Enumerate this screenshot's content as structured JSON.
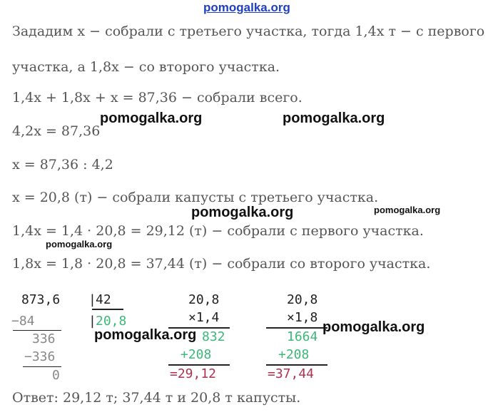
{
  "watermark": "pomogalka.org",
  "lines": [
    "Зададим x − собрали с третьего участка, тогда 1,4x т − с первого",
    "участка, а 1,8x − со второго участка.",
    "1,4x + 1,8x + x = 87,36 − собрали всего.",
    "4,2x = 87,36",
    "x = 87,36 : 4,2",
    "x = 20,8 (т) − собрали капусты с третьего участка.",
    "1,4x = 1,4 · 20,8 = 29,12 (т) − собрали с первого участка.",
    "1,8x = 1,8 · 20,8 = 37,44 (т) − собрали со второго участка."
  ],
  "division": {
    "dividend": "873,6",
    "divisor": "42",
    "quotient": "20,8",
    "sub1": "−84",
    "rem1": "336",
    "sub2": "−336",
    "rem2": "0"
  },
  "mult1": {
    "a": "20,8",
    "b": "×1,4",
    "p1": "832",
    "p2": "+208",
    "result": "=29,12"
  },
  "mult2": {
    "a": "20,8",
    "b": "×1,8",
    "p1": "1664",
    "p2": "+208",
    "result": "=37,44"
  },
  "answer": "Ответ: 29,12 т; 37,44 т и 20,8 т капусты.",
  "colors": {
    "text": "#555555",
    "partial": "#3cb878",
    "result": "#b03050",
    "watermark_top": "#2040c0"
  }
}
